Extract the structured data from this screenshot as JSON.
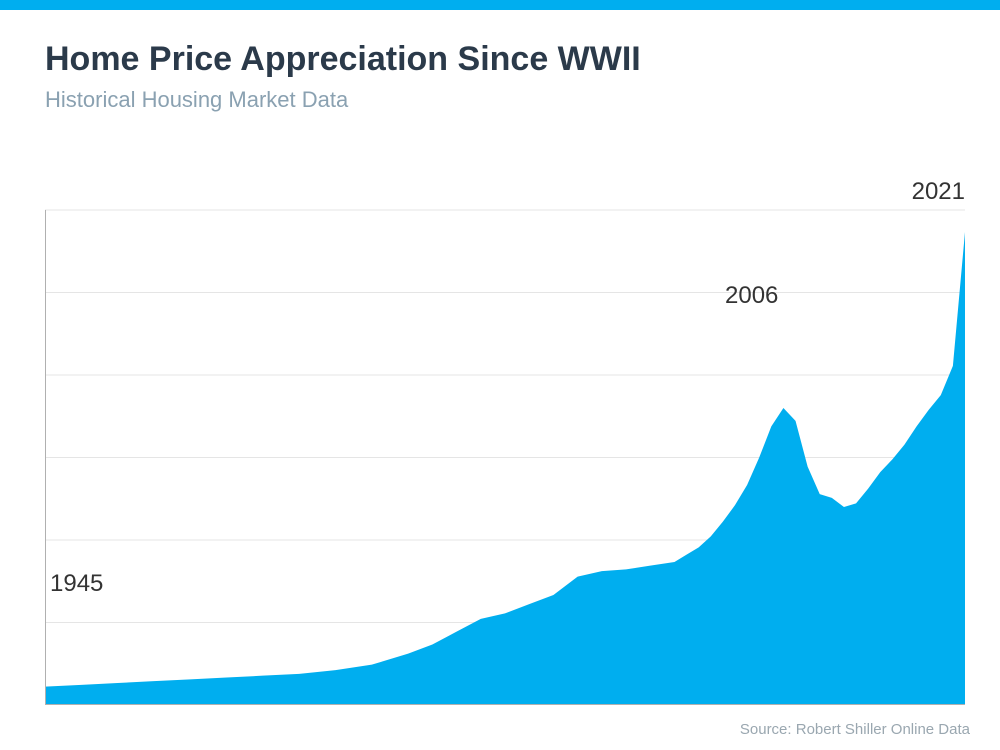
{
  "header": {
    "title": "Home Price Appreciation Since WWII",
    "subtitle": "Historical Housing Market Data",
    "title_color": "#2b3a4a",
    "subtitle_color": "#8aa1b1",
    "title_fontsize": 34,
    "subtitle_fontsize": 22
  },
  "colors": {
    "top_bar": "#00aeef",
    "area_fill": "#00aeef",
    "grid": "#e5e5e5",
    "axis": "#b0b0b0",
    "source_text": "#9aa7b0",
    "callout_text": "#333333",
    "background": "#ffffff"
  },
  "chart": {
    "type": "area",
    "x_range": [
      1945,
      2021
    ],
    "y_range": [
      0,
      270
    ],
    "grid_y_values": [
      45,
      90,
      135,
      180,
      225,
      270
    ],
    "series": {
      "x": [
        1945,
        1948,
        1951,
        1954,
        1957,
        1960,
        1963,
        1966,
        1969,
        1972,
        1975,
        1977,
        1979,
        1981,
        1983,
        1985,
        1987,
        1989,
        1991,
        1993,
        1995,
        1997,
        1998,
        1999,
        2000,
        2001,
        2002,
        2003,
        2004,
        2005,
        2006,
        2007,
        2008,
        2009,
        2010,
        2011,
        2012,
        2013,
        2014,
        2015,
        2016,
        2017,
        2018,
        2019,
        2020,
        2021
      ],
      "y": [
        10,
        11,
        12,
        13,
        14,
        15,
        16,
        17,
        19,
        22,
        28,
        33,
        40,
        47,
        50,
        55,
        60,
        70,
        73,
        74,
        76,
        78,
        82,
        86,
        92,
        100,
        109,
        120,
        135,
        152,
        162,
        155,
        130,
        115,
        113,
        108,
        110,
        118,
        127,
        134,
        142,
        152,
        161,
        169,
        185,
        258
      ]
    },
    "callouts": [
      {
        "label": "1945",
        "pos_css": "left:5px; top:400px;"
      },
      {
        "label": "2006",
        "pos_css": "left:680px; top:112px;"
      },
      {
        "label": "2021",
        "pos_css": "right:0px; top:8px;"
      }
    ],
    "line_width": 0
  },
  "source": {
    "text": "Source: Robert Shiller Online Data"
  }
}
